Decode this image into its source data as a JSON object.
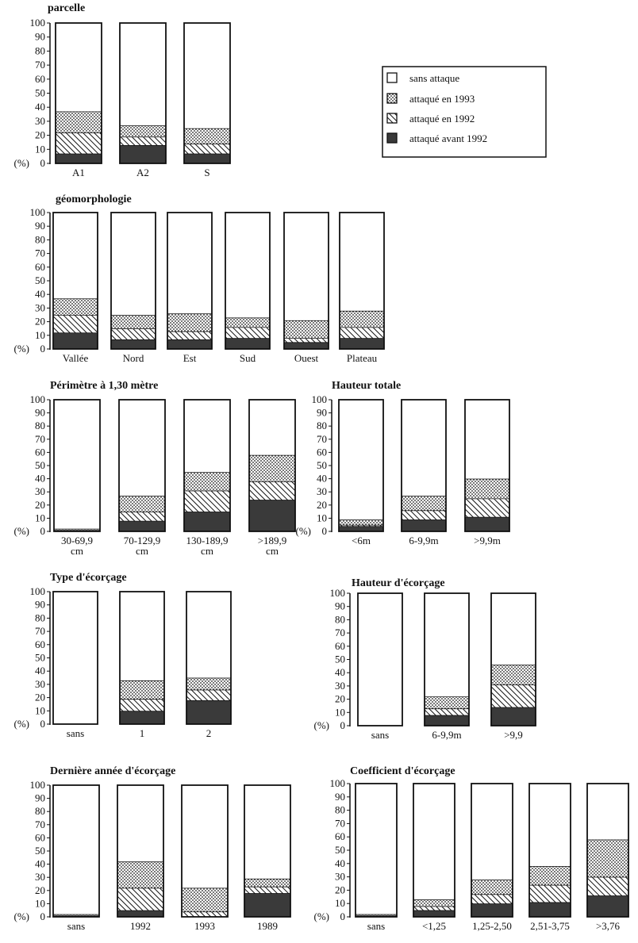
{
  "legend": [
    {
      "label": "sans attaque",
      "pattern": "none"
    },
    {
      "label": "attaqué en 1993",
      "pattern": "dots"
    },
    {
      "label": "attaqué en 1992",
      "pattern": "hatch"
    },
    {
      "label": "attaqué avant 1992",
      "pattern": "solid"
    }
  ],
  "colors": {
    "ink": "#111111",
    "solid_fill": "#3a3a3a",
    "dots_fill": "#1a1a1a",
    "hatch_stroke": "#111111"
  },
  "chart_data": [
    {
      "type": "bar",
      "stacked": true,
      "title": "parcelle",
      "yunit": "(%)",
      "ylim": [
        0,
        100
      ],
      "yticks": [
        0,
        10,
        20,
        30,
        40,
        50,
        60,
        70,
        80,
        90,
        100
      ],
      "categories": [
        [
          "A1"
        ],
        [
          "A2"
        ],
        [
          "S"
        ]
      ],
      "series": [
        {
          "name": "attaqué avant 1992",
          "values": [
            7,
            13,
            7
          ]
        },
        {
          "name": "attaqué en 1992",
          "values": [
            15,
            6,
            7
          ]
        },
        {
          "name": "attaqué en 1993",
          "values": [
            15,
            8,
            11
          ]
        },
        {
          "name": "sans attaque",
          "values": [
            63,
            73,
            75
          ]
        }
      ]
    },
    {
      "type": "bar",
      "stacked": true,
      "title": "géomorphologie",
      "yunit": "(%)",
      "ylim": [
        0,
        100
      ],
      "yticks": [
        0,
        10,
        20,
        30,
        40,
        50,
        60,
        70,
        80,
        90,
        100
      ],
      "categories": [
        [
          "Vallée"
        ],
        [
          "Nord"
        ],
        [
          "Est"
        ],
        [
          "Sud"
        ],
        [
          "Ouest"
        ],
        [
          "Plateau"
        ]
      ],
      "series": [
        {
          "name": "attaqué avant 1992",
          "values": [
            12,
            7,
            7,
            8,
            5,
            8
          ]
        },
        {
          "name": "attaqué en 1992",
          "values": [
            13,
            8,
            6,
            8,
            3,
            8
          ]
        },
        {
          "name": "attaqué en 1993",
          "values": [
            12,
            10,
            13,
            7,
            13,
            12
          ]
        },
        {
          "name": "sans attaque",
          "values": [
            63,
            75,
            74,
            77,
            79,
            72
          ]
        }
      ]
    },
    {
      "type": "bar",
      "stacked": true,
      "title": "Périmètre à 1,30 mètre",
      "yunit": "(%)",
      "ylim": [
        0,
        100
      ],
      "yticks": [
        0,
        10,
        20,
        30,
        40,
        50,
        60,
        70,
        80,
        90,
        100
      ],
      "categories": [
        [
          "30-69,9",
          "cm"
        ],
        [
          "70-129,9",
          "cm"
        ],
        [
          "130-189,9",
          "cm"
        ],
        [
          ">189,9",
          "cm"
        ]
      ],
      "series": [
        {
          "name": "attaqué avant 1992",
          "values": [
            1,
            8,
            15,
            24
          ]
        },
        {
          "name": "attaqué en 1992",
          "values": [
            0,
            7,
            16,
            14
          ]
        },
        {
          "name": "attaqué en 1993",
          "values": [
            1,
            12,
            14,
            20
          ]
        },
        {
          "name": "sans attaque",
          "values": [
            98,
            73,
            55,
            42
          ]
        }
      ]
    },
    {
      "type": "bar",
      "stacked": true,
      "title": "Hauteur totale",
      "yunit": "(%)",
      "ylim": [
        0,
        100
      ],
      "yticks": [
        0,
        10,
        20,
        30,
        40,
        50,
        60,
        70,
        80,
        90,
        100
      ],
      "categories": [
        [
          "<6m"
        ],
        [
          "6-9,9m"
        ],
        [
          ">9,9m"
        ]
      ],
      "series": [
        {
          "name": "attaqué avant 1992",
          "values": [
            4,
            9,
            11
          ]
        },
        {
          "name": "attaqué en 1992",
          "values": [
            1,
            7,
            14
          ]
        },
        {
          "name": "attaqué en 1993",
          "values": [
            4,
            11,
            15
          ]
        },
        {
          "name": "sans attaque",
          "values": [
            91,
            73,
            60
          ]
        }
      ]
    },
    {
      "type": "bar",
      "stacked": true,
      "title": "Type d'écorçage",
      "yunit": "(%)",
      "ylim": [
        0,
        100
      ],
      "yticks": [
        0,
        10,
        20,
        30,
        40,
        50,
        60,
        70,
        80,
        90,
        100
      ],
      "categories": [
        [
          "sans"
        ],
        [
          "1"
        ],
        [
          "2"
        ]
      ],
      "series": [
        {
          "name": "attaqué avant 1992",
          "values": [
            0,
            10,
            18
          ]
        },
        {
          "name": "attaqué en 1992",
          "values": [
            0,
            9,
            8
          ]
        },
        {
          "name": "attaqué en 1993",
          "values": [
            0,
            14,
            9
          ]
        },
        {
          "name": "sans attaque",
          "values": [
            100,
            67,
            65
          ]
        }
      ]
    },
    {
      "type": "bar",
      "stacked": true,
      "title": "Hauteur d'écorçage",
      "yunit": "(%)",
      "ylim": [
        0,
        100
      ],
      "yticks": [
        0,
        10,
        20,
        30,
        40,
        50,
        60,
        70,
        80,
        90,
        100
      ],
      "categories": [
        [
          "sans"
        ],
        [
          "6-9,9m"
        ],
        [
          ">9,9"
        ]
      ],
      "series": [
        {
          "name": "attaqué avant 1992",
          "values": [
            0,
            8,
            14
          ]
        },
        {
          "name": "attaqué en 1992",
          "values": [
            0,
            5,
            17
          ]
        },
        {
          "name": "attaqué en 1993",
          "values": [
            0,
            9,
            15
          ]
        },
        {
          "name": "sans attaque",
          "values": [
            100,
            78,
            54
          ]
        }
      ]
    },
    {
      "type": "bar",
      "stacked": true,
      "title": "Dernière année d'écorçage",
      "yunit": "(%)",
      "ylim": [
        0,
        100
      ],
      "yticks": [
        0,
        10,
        20,
        30,
        40,
        50,
        60,
        70,
        80,
        90,
        100
      ],
      "categories": [
        [
          "sans"
        ],
        [
          "1992"
        ],
        [
          "1993"
        ],
        [
          "1989"
        ]
      ],
      "series": [
        {
          "name": "attaqué avant 1992",
          "values": [
            1,
            5,
            0,
            18
          ]
        },
        {
          "name": "attaqué en 1992",
          "values": [
            0,
            17,
            4,
            5
          ]
        },
        {
          "name": "attaqué en 1993",
          "values": [
            1,
            20,
            18,
            6
          ]
        },
        {
          "name": "sans attaque",
          "values": [
            98,
            58,
            78,
            71
          ]
        }
      ]
    },
    {
      "type": "bar",
      "stacked": true,
      "title": "Coefficient d'écorçage",
      "yunit": "(%)",
      "ylim": [
        0,
        100
      ],
      "yticks": [
        0,
        10,
        20,
        30,
        40,
        50,
        60,
        70,
        80,
        90,
        100
      ],
      "categories": [
        [
          "sans"
        ],
        [
          "<1,25"
        ],
        [
          "1,25-2,50"
        ],
        [
          "2,51-3,75"
        ],
        [
          ">3,76"
        ]
      ],
      "series": [
        {
          "name": "attaqué avant 1992",
          "values": [
            1,
            5,
            10,
            11,
            16
          ]
        },
        {
          "name": "attaqué en 1992",
          "values": [
            0,
            3,
            7,
            13,
            14
          ]
        },
        {
          "name": "attaqué en 1993",
          "values": [
            1,
            5,
            11,
            14,
            28
          ]
        },
        {
          "name": "sans attaque",
          "values": [
            98,
            87,
            72,
            62,
            42
          ]
        }
      ]
    }
  ]
}
